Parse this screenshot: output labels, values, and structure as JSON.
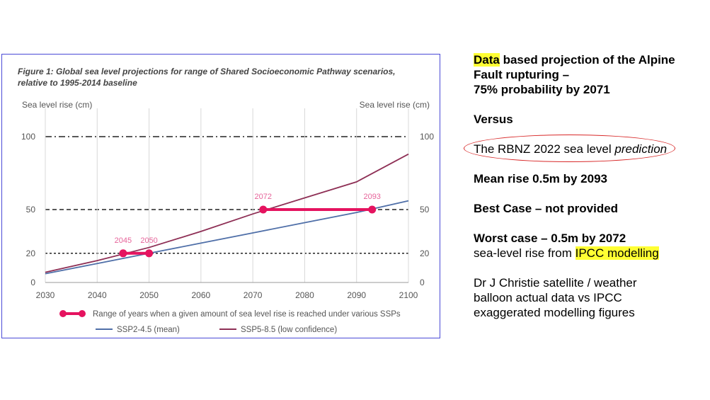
{
  "figure": {
    "title_line1": "Figure 1: Global sea level projections for range of Shared Socioeconomic Pathway scenarios,",
    "title_line2": "relative to 1995-2014 baseline"
  },
  "chart_data": {
    "type": "line",
    "ylabel": "Sea level rise (cm)",
    "ylabel_right": "Sea level rise (cm)",
    "xlim": [
      2030,
      2100
    ],
    "ylim": [
      0,
      100
    ],
    "x_ticks": [
      2030,
      2040,
      2050,
      2060,
      2070,
      2080,
      2090,
      2100
    ],
    "y_ticks": [
      0,
      20,
      50,
      100
    ],
    "reference_lines": [
      {
        "y": 100,
        "style": "dash-dot"
      },
      {
        "y": 50,
        "style": "dashed"
      },
      {
        "y": 20,
        "style": "dotted"
      }
    ],
    "series": [
      {
        "name": "SSP2-4.5 (mean)",
        "color": "#4f6fa8",
        "x": [
          2030,
          2040,
          2050,
          2060,
          2070,
          2080,
          2090,
          2100
        ],
        "y": [
          6,
          13,
          20,
          27,
          34,
          41,
          48,
          56
        ]
      },
      {
        "name": "SSP5-8.5 (low confidence)",
        "color": "#8e2f55",
        "x": [
          2030,
          2040,
          2050,
          2060,
          2070,
          2080,
          2090,
          2100
        ],
        "y": [
          7,
          15,
          24,
          35,
          47,
          58,
          69,
          88
        ]
      }
    ],
    "ranges": [
      {
        "level": 20,
        "start": 2045,
        "end": 2050,
        "start_label": "2045",
        "end_label": "2050"
      },
      {
        "level": 50,
        "start": 2072,
        "end": 2093,
        "start_label": "2072",
        "end_label": "2093"
      }
    ],
    "range_color": "#e5135f",
    "range_legend": "Range of years when a given amount of sea level rise is reached under various SSPs"
  },
  "notes": {
    "data_word": "Data",
    "line1_rest": " based projection of the Alpine",
    "line2": "Fault rupturing –",
    "line3": "75% probability by 2071",
    "versus": "Versus",
    "prediction_prefix": "The RBNZ 2022 sea level ",
    "prediction_word": "prediction",
    "mean_rise": "Mean rise 0.5m by 2093",
    "best_case": "Best Case – not provided",
    "worst_case": "Worst case – 0.5m by 2072",
    "ipcc_prefix": "sea-level rise from ",
    "ipcc_word": "IPCC modelling",
    "christie_line1": "Dr J Christie satellite / weather",
    "christie_line2": "balloon actual data vs IPCC",
    "christie_line3": "exaggerated modelling figures",
    "highlight_color": "#ffff33",
    "ring_color": "#d82828"
  }
}
